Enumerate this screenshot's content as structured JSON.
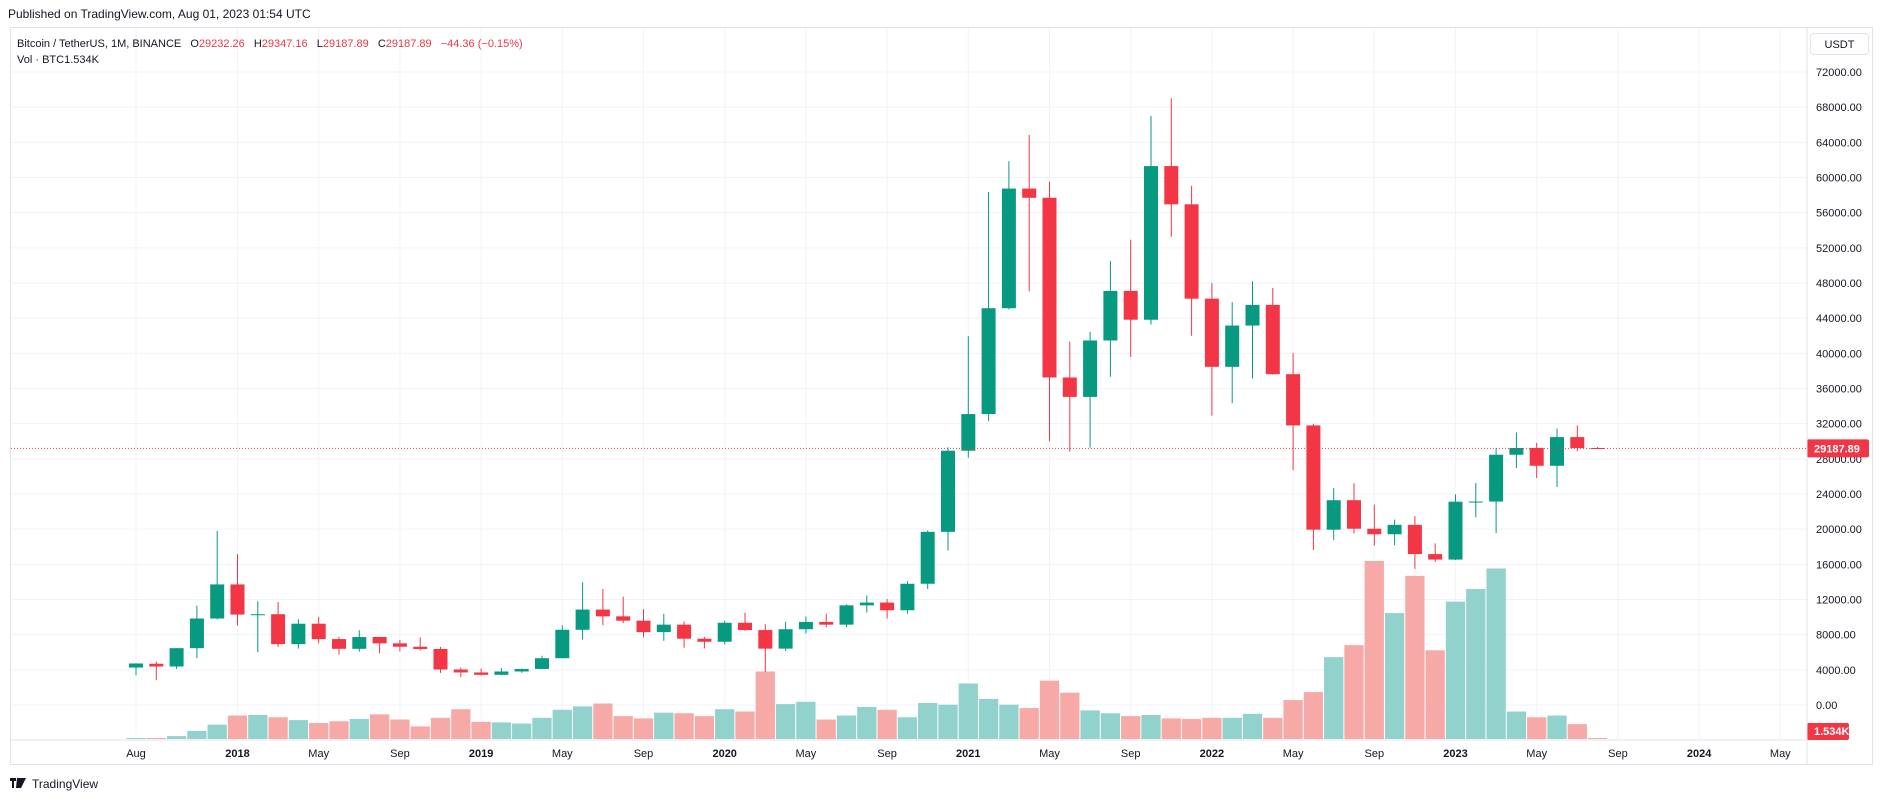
{
  "published": "Published on TradingView.com, Aug 01, 2023 01:54 UTC",
  "legend": {
    "symbol": "Bitcoin / TetherUS, 1M, BINANCE",
    "o_label": "O",
    "o_value": "29232.26",
    "h_label": "H",
    "h_value": "29347.16",
    "l_label": "L",
    "l_value": "29187.89",
    "c_label": "C",
    "c_value": "29187.89",
    "change": "−44.36 (−0.15%)",
    "vol_label": "Vol · BTC",
    "vol_value": "1.534K"
  },
  "currency_button": "USDT",
  "footer": {
    "brand": "TradingView"
  },
  "colors": {
    "up": "#089981",
    "down": "#f23645",
    "vol_up": "#92d2cc",
    "vol_down": "#f7a9a7",
    "grid": "#f0f3fa",
    "axis_text": "#131722"
  },
  "chart_data": {
    "type": "candlestick",
    "symbol": "Bitcoin / TetherUS",
    "interval": "1M",
    "exchange": "BINANCE",
    "y_axis_currency": "USDT",
    "ylim": [
      0,
      72000
    ],
    "y_ticks": [
      "72000.00",
      "68000.00",
      "64000.00",
      "60000.00",
      "56000.00",
      "52000.00",
      "48000.00",
      "44000.00",
      "40000.00",
      "36000.00",
      "32000.00",
      "28000.00",
      "24000.00",
      "20000.00",
      "16000.00",
      "12000.00",
      "8000.00",
      "4000.00",
      "0.00"
    ],
    "y_tick_values": [
      72000,
      68000,
      64000,
      60000,
      56000,
      52000,
      48000,
      44000,
      40000,
      36000,
      32000,
      28000,
      24000,
      20000,
      16000,
      12000,
      8000,
      4000,
      0
    ],
    "x_ticks": [
      {
        "label": "Aug",
        "index": 0,
        "bold": false
      },
      {
        "label": "2018",
        "index": 5,
        "bold": true
      },
      {
        "label": "May",
        "index": 9,
        "bold": false
      },
      {
        "label": "Sep",
        "index": 13,
        "bold": false
      },
      {
        "label": "2019",
        "index": 17,
        "bold": true
      },
      {
        "label": "May",
        "index": 21,
        "bold": false
      },
      {
        "label": "Sep",
        "index": 25,
        "bold": false
      },
      {
        "label": "2020",
        "index": 29,
        "bold": true
      },
      {
        "label": "May",
        "index": 33,
        "bold": false
      },
      {
        "label": "Sep",
        "index": 37,
        "bold": false
      },
      {
        "label": "2021",
        "index": 41,
        "bold": true
      },
      {
        "label": "May",
        "index": 45,
        "bold": false
      },
      {
        "label": "Sep",
        "index": 49,
        "bold": false
      },
      {
        "label": "2022",
        "index": 53,
        "bold": true
      },
      {
        "label": "May",
        "index": 57,
        "bold": false
      },
      {
        "label": "Sep",
        "index": 61,
        "bold": false
      },
      {
        "label": "2023",
        "index": 65,
        "bold": true
      },
      {
        "label": "May",
        "index": 69,
        "bold": false
      },
      {
        "label": "Sep",
        "index": 73,
        "bold": false
      },
      {
        "label": "2024",
        "index": 77,
        "bold": true
      },
      {
        "label": "May",
        "index": 81,
        "bold": false
      }
    ],
    "last_price": 29187.89,
    "last_price_label": "29187.89",
    "last_volume_label": "1.534K",
    "candles": [
      {
        "month": "2017-08",
        "o": 4261,
        "h": 4745,
        "l": 3400,
        "c": 4724,
        "v": 795
      },
      {
        "month": "2017-09",
        "o": 4690,
        "h": 4939,
        "l": 2817,
        "c": 4379,
        "v": 1200
      },
      {
        "month": "2017-10",
        "o": 4379,
        "h": 6470,
        "l": 4110,
        "c": 6463,
        "v": 5000
      },
      {
        "month": "2017-11",
        "o": 6463,
        "h": 11300,
        "l": 5325,
        "c": 9838,
        "v": 14000
      },
      {
        "month": "2017-12",
        "o": 9837,
        "h": 19798,
        "l": 9722,
        "c": 13716,
        "v": 25000
      },
      {
        "month": "2018-01",
        "o": 13715,
        "h": 17176,
        "l": 9035,
        "c": 10285,
        "v": 41000
      },
      {
        "month": "2018-02",
        "o": 10285,
        "h": 11786,
        "l": 6000,
        "c": 10326,
        "v": 42000
      },
      {
        "month": "2018-03",
        "o": 10325,
        "h": 11710,
        "l": 6600,
        "c": 6923,
        "v": 38000
      },
      {
        "month": "2018-04",
        "o": 6922,
        "h": 9759,
        "l": 6425,
        "c": 9246,
        "v": 33000
      },
      {
        "month": "2018-05",
        "o": 9246,
        "h": 10020,
        "l": 7032,
        "c": 7494,
        "v": 28000
      },
      {
        "month": "2018-06",
        "o": 7500,
        "h": 7760,
        "l": 5750,
        "c": 6391,
        "v": 31000
      },
      {
        "month": "2018-07",
        "o": 6391,
        "h": 8507,
        "l": 6070,
        "c": 7730,
        "v": 35000
      },
      {
        "month": "2018-08",
        "o": 7735,
        "h": 7750,
        "l": 5880,
        "c": 7011,
        "v": 43000
      },
      {
        "month": "2018-09",
        "o": 7011,
        "h": 7410,
        "l": 6100,
        "c": 6626,
        "v": 34000
      },
      {
        "month": "2018-10",
        "o": 6626,
        "h": 7680,
        "l": 6200,
        "c": 6371,
        "v": 22000
      },
      {
        "month": "2018-11",
        "o": 6369,
        "h": 6600,
        "l": 3652,
        "c": 4041,
        "v": 37000
      },
      {
        "month": "2018-12",
        "o": 4041,
        "h": 4255,
        "l": 3156,
        "c": 3702,
        "v": 52000
      },
      {
        "month": "2019-01",
        "o": 3701,
        "h": 4143,
        "l": 3349,
        "c": 3434,
        "v": 30000
      },
      {
        "month": "2019-02",
        "o": 3434,
        "h": 4198,
        "l": 3373,
        "c": 3813,
        "v": 29000
      },
      {
        "month": "2019-03",
        "o": 3814,
        "h": 4121,
        "l": 3670,
        "c": 4103,
        "v": 27000
      },
      {
        "month": "2019-04",
        "o": 4102,
        "h": 5600,
        "l": 4067,
        "c": 5321,
        "v": 37000
      },
      {
        "month": "2019-05",
        "o": 5321,
        "h": 9074,
        "l": 5316,
        "c": 8555,
        "v": 51000
      },
      {
        "month": "2019-06",
        "o": 8555,
        "h": 13970,
        "l": 7444,
        "c": 10855,
        "v": 57000
      },
      {
        "month": "2019-07",
        "o": 10854,
        "h": 13200,
        "l": 9070,
        "c": 10085,
        "v": 62000
      },
      {
        "month": "2019-08",
        "o": 10083,
        "h": 12325,
        "l": 9320,
        "c": 9590,
        "v": 40000
      },
      {
        "month": "2019-09",
        "o": 9589,
        "h": 10905,
        "l": 7710,
        "c": 8289,
        "v": 36000
      },
      {
        "month": "2019-10",
        "o": 8289,
        "h": 10370,
        "l": 7300,
        "c": 9140,
        "v": 46000
      },
      {
        "month": "2019-11",
        "o": 9140,
        "h": 9513,
        "l": 6515,
        "c": 7541,
        "v": 45000
      },
      {
        "month": "2019-12",
        "o": 7540,
        "h": 7750,
        "l": 6435,
        "c": 7195,
        "v": 40000
      },
      {
        "month": "2020-01",
        "o": 7195,
        "h": 9578,
        "l": 6871,
        "c": 9351,
        "v": 52000
      },
      {
        "month": "2020-02",
        "o": 9351,
        "h": 10500,
        "l": 8451,
        "c": 8523,
        "v": 48000
      },
      {
        "month": "2020-03",
        "o": 8523,
        "h": 9189,
        "l": 3782,
        "c": 6410,
        "v": 118000
      },
      {
        "month": "2020-04",
        "o": 6412,
        "h": 9468,
        "l": 6150,
        "c": 8620,
        "v": 61000
      },
      {
        "month": "2020-05",
        "o": 8621,
        "h": 10068,
        "l": 8117,
        "c": 9448,
        "v": 65000
      },
      {
        "month": "2020-06",
        "o": 9448,
        "h": 10380,
        "l": 8833,
        "c": 9138,
        "v": 34000
      },
      {
        "month": "2020-07",
        "o": 9138,
        "h": 11444,
        "l": 8893,
        "c": 11336,
        "v": 41000
      },
      {
        "month": "2020-08",
        "o": 11335,
        "h": 12468,
        "l": 10519,
        "c": 11650,
        "v": 56000
      },
      {
        "month": "2020-09",
        "o": 11649,
        "h": 12050,
        "l": 9825,
        "c": 10776,
        "v": 51000
      },
      {
        "month": "2020-10",
        "o": 10776,
        "h": 14100,
        "l": 10374,
        "c": 13791,
        "v": 38000
      },
      {
        "month": "2020-11",
        "o": 13791,
        "h": 19863,
        "l": 13195,
        "c": 19695,
        "v": 63000
      },
      {
        "month": "2020-12",
        "o": 19695,
        "h": 29300,
        "l": 17572,
        "c": 28923,
        "v": 60000
      },
      {
        "month": "2021-01",
        "o": 28923,
        "h": 41950,
        "l": 28130,
        "c": 33092,
        "v": 97000
      },
      {
        "month": "2021-02",
        "o": 33092,
        "h": 58352,
        "l": 32296,
        "c": 45135,
        "v": 70000
      },
      {
        "month": "2021-03",
        "o": 45134,
        "h": 61844,
        "l": 45000,
        "c": 58740,
        "v": 60000
      },
      {
        "month": "2021-04",
        "o": 58739,
        "h": 64854,
        "l": 47044,
        "c": 57694,
        "v": 54000
      },
      {
        "month": "2021-05",
        "o": 57697,
        "h": 59500,
        "l": 30000,
        "c": 37253,
        "v": 102000
      },
      {
        "month": "2021-06",
        "o": 37253,
        "h": 41330,
        "l": 28805,
        "c": 35045,
        "v": 81000
      },
      {
        "month": "2021-07",
        "o": 35045,
        "h": 42448,
        "l": 29278,
        "c": 41461,
        "v": 50000
      },
      {
        "month": "2021-08",
        "o": 41461,
        "h": 50500,
        "l": 37332,
        "c": 47100,
        "v": 45000
      },
      {
        "month": "2021-09",
        "o": 47100,
        "h": 52920,
        "l": 39600,
        "c": 43824,
        "v": 40000
      },
      {
        "month": "2021-10",
        "o": 43820,
        "h": 67000,
        "l": 43283,
        "c": 61300,
        "v": 42000
      },
      {
        "month": "2021-11",
        "o": 61300,
        "h": 69000,
        "l": 53256,
        "c": 56950,
        "v": 36000
      },
      {
        "month": "2021-12",
        "o": 56950,
        "h": 59053,
        "l": 42000,
        "c": 46216,
        "v": 35000
      },
      {
        "month": "2022-01",
        "o": 46216,
        "h": 47990,
        "l": 32917,
        "c": 38466,
        "v": 37000
      },
      {
        "month": "2022-02",
        "o": 38466,
        "h": 45821,
        "l": 34322,
        "c": 43160,
        "v": 37000
      },
      {
        "month": "2022-03",
        "o": 43160,
        "h": 48190,
        "l": 37155,
        "c": 45510,
        "v": 44000
      },
      {
        "month": "2022-04",
        "o": 45510,
        "h": 47444,
        "l": 37578,
        "c": 37630,
        "v": 37000
      },
      {
        "month": "2022-05",
        "o": 37630,
        "h": 40023,
        "l": 26700,
        "c": 31801,
        "v": 68000
      },
      {
        "month": "2022-06",
        "o": 31801,
        "h": 31986,
        "l": 17622,
        "c": 19942,
        "v": 82000
      },
      {
        "month": "2022-07",
        "o": 19942,
        "h": 24668,
        "l": 18782,
        "c": 23293,
        "v": 143000
      },
      {
        "month": "2022-08",
        "o": 23296,
        "h": 25211,
        "l": 19520,
        "c": 20050,
        "v": 164000
      },
      {
        "month": "2022-09",
        "o": 20050,
        "h": 22799,
        "l": 18125,
        "c": 19423,
        "v": 311000
      },
      {
        "month": "2022-10",
        "o": 19422,
        "h": 21085,
        "l": 18190,
        "c": 20491,
        "v": 220000
      },
      {
        "month": "2022-11",
        "o": 20490,
        "h": 21480,
        "l": 15476,
        "c": 17164,
        "v": 285000
      },
      {
        "month": "2022-12",
        "o": 17165,
        "h": 18387,
        "l": 16256,
        "c": 16542,
        "v": 155000
      },
      {
        "month": "2023-01",
        "o": 16541,
        "h": 23960,
        "l": 16499,
        "c": 23125,
        "v": 240000
      },
      {
        "month": "2023-02",
        "o": 23125,
        "h": 25250,
        "l": 21351,
        "c": 23141,
        "v": 262000
      },
      {
        "month": "2023-03",
        "o": 23141,
        "h": 29184,
        "l": 19549,
        "c": 28465,
        "v": 298000
      },
      {
        "month": "2023-04",
        "o": 28465,
        "h": 31000,
        "l": 26942,
        "c": 29233,
        "v": 48000
      },
      {
        "month": "2023-05",
        "o": 29233,
        "h": 29820,
        "l": 25811,
        "c": 27210,
        "v": 38000
      },
      {
        "month": "2023-06",
        "o": 27210,
        "h": 31431,
        "l": 24800,
        "c": 30472,
        "v": 41000
      },
      {
        "month": "2023-07",
        "o": 30471,
        "h": 31804,
        "l": 28861,
        "c": 29232,
        "v": 26000
      },
      {
        "month": "2023-08",
        "o": 29232,
        "h": 29347,
        "l": 29188,
        "c": 29188,
        "v": 1534
      }
    ]
  }
}
